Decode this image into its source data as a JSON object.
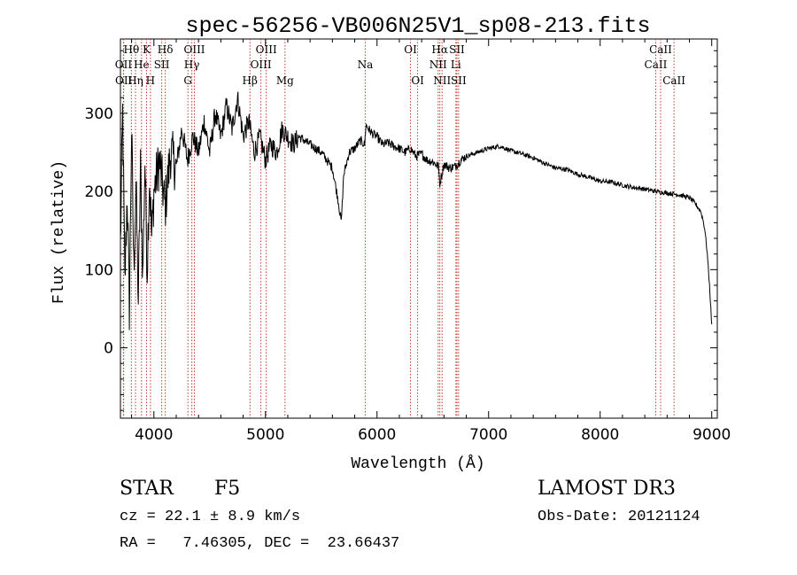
{
  "chart_data": {
    "type": "line",
    "title": "spec-56256-VB006N25V1_sp08-213.fits",
    "xlabel": "Wavelength (Å)",
    "ylabel": "Flux (relative)",
    "xlim": [
      3700,
      9050
    ],
    "ylim": [
      -90,
      395
    ],
    "xticks": [
      4000,
      5000,
      6000,
      7000,
      8000,
      9000
    ],
    "yticks": [
      0,
      100,
      200,
      300
    ],
    "colors": {
      "spectrum": "#000000",
      "lines": "#c0392b",
      "axes": "#000000"
    },
    "series": [
      {
        "name": "spectrum",
        "x": [
          3700,
          3720,
          3740,
          3760,
          3780,
          3800,
          3820,
          3840,
          3860,
          3880,
          3900,
          3920,
          3940,
          3960,
          3980,
          4000,
          4050,
          4100,
          4150,
          4200,
          4250,
          4300,
          4350,
          4400,
          4450,
          4500,
          4550,
          4600,
          4650,
          4700,
          4750,
          4800,
          4850,
          4900,
          4950,
          5000,
          5050,
          5100,
          5150,
          5200,
          5250,
          5300,
          5400,
          5500,
          5600,
          5650,
          5680,
          5700,
          5750,
          5800,
          5850,
          5890,
          5900,
          5950,
          6000,
          6050,
          6100,
          6150,
          6200,
          6250,
          6300,
          6350,
          6400,
          6450,
          6500,
          6550,
          6563,
          6600,
          6650,
          6700,
          6750,
          6800,
          6900,
          7000,
          7100,
          7200,
          7300,
          7400,
          7500,
          7600,
          7700,
          7800,
          7900,
          8000,
          8100,
          8200,
          8300,
          8400,
          8500,
          8600,
          8700,
          8800,
          8850,
          8900,
          8920,
          8940,
          8960,
          8980,
          9000
        ],
        "values": [
          130,
          300,
          80,
          200,
          50,
          280,
          100,
          210,
          60,
          230,
          90,
          240,
          100,
          220,
          140,
          200,
          240,
          180,
          250,
          230,
          280,
          240,
          270,
          250,
          290,
          250,
          300,
          270,
          310,
          280,
          320,
          270,
          290,
          250,
          270,
          240,
          260,
          250,
          280,
          270,
          260,
          270,
          260,
          250,
          230,
          190,
          160,
          220,
          250,
          255,
          265,
          260,
          285,
          275,
          270,
          260,
          262,
          258,
          255,
          250,
          255,
          245,
          248,
          240,
          238,
          232,
          210,
          235,
          230,
          232,
          240,
          245,
          250,
          255,
          258,
          252,
          248,
          243,
          236,
          230,
          228,
          222,
          218,
          213,
          212,
          208,
          205,
          203,
          200,
          198,
          196,
          192,
          185,
          175,
          165,
          150,
          120,
          80,
          30
        ]
      }
    ],
    "spectral_lines": [
      {
        "label": "Hθ",
        "wavelength": 3798,
        "row": 0
      },
      {
        "label": "OII",
        "wavelength": 3727,
        "row": 1
      },
      {
        "label": "OII",
        "wavelength": 3729,
        "row": 2
      },
      {
        "label": "He",
        "wavelength": 3889,
        "row": 1
      },
      {
        "label": "Hη",
        "wavelength": 3835,
        "row": 2
      },
      {
        "label": "K",
        "wavelength": 3934,
        "row": 0
      },
      {
        "label": "H",
        "wavelength": 3969,
        "row": 2
      },
      {
        "label": "SII",
        "wavelength": 4070,
        "row": 1
      },
      {
        "label": "Hδ",
        "wavelength": 4102,
        "row": 0
      },
      {
        "label": "G",
        "wavelength": 4305,
        "row": 2
      },
      {
        "label": "Hγ",
        "wavelength": 4340,
        "row": 1
      },
      {
        "label": "OIII",
        "wavelength": 4363,
        "row": 0
      },
      {
        "label": "Hβ",
        "wavelength": 4861,
        "row": 2
      },
      {
        "label": "OIII",
        "wavelength": 4959,
        "row": 1
      },
      {
        "label": "OIII",
        "wavelength": 5007,
        "row": 0
      },
      {
        "label": "Mg",
        "wavelength": 5175,
        "row": 2
      },
      {
        "label": "Na",
        "wavelength": 5894,
        "row": 1
      },
      {
        "label": "OI",
        "wavelength": 6300,
        "row": 0
      },
      {
        "label": "OI",
        "wavelength": 6364,
        "row": 2
      },
      {
        "label": "NII",
        "wavelength": 6548,
        "row": 1
      },
      {
        "label": "Hα",
        "wavelength": 6563,
        "row": 0
      },
      {
        "label": "NII",
        "wavelength": 6583,
        "row": 2
      },
      {
        "label": "Li",
        "wavelength": 6707,
        "row": 1
      },
      {
        "label": "SII",
        "wavelength": 6716,
        "row": 0
      },
      {
        "label": "SII",
        "wavelength": 6731,
        "row": 2
      },
      {
        "label": "CaII",
        "wavelength": 8498,
        "row": 1
      },
      {
        "label": "CaII",
        "wavelength": 8542,
        "row": 0
      },
      {
        "label": "CaII",
        "wavelength": 8662,
        "row": 2
      }
    ]
  },
  "info": {
    "object_class": "STAR",
    "subclass": "F5",
    "survey": "LAMOST DR3",
    "cz": "cz = 22.1 ± 8.9 km/s",
    "obs_date": "Obs-Date: 20121124",
    "coords": "RA =   7.46305, DEC =  23.66437"
  }
}
